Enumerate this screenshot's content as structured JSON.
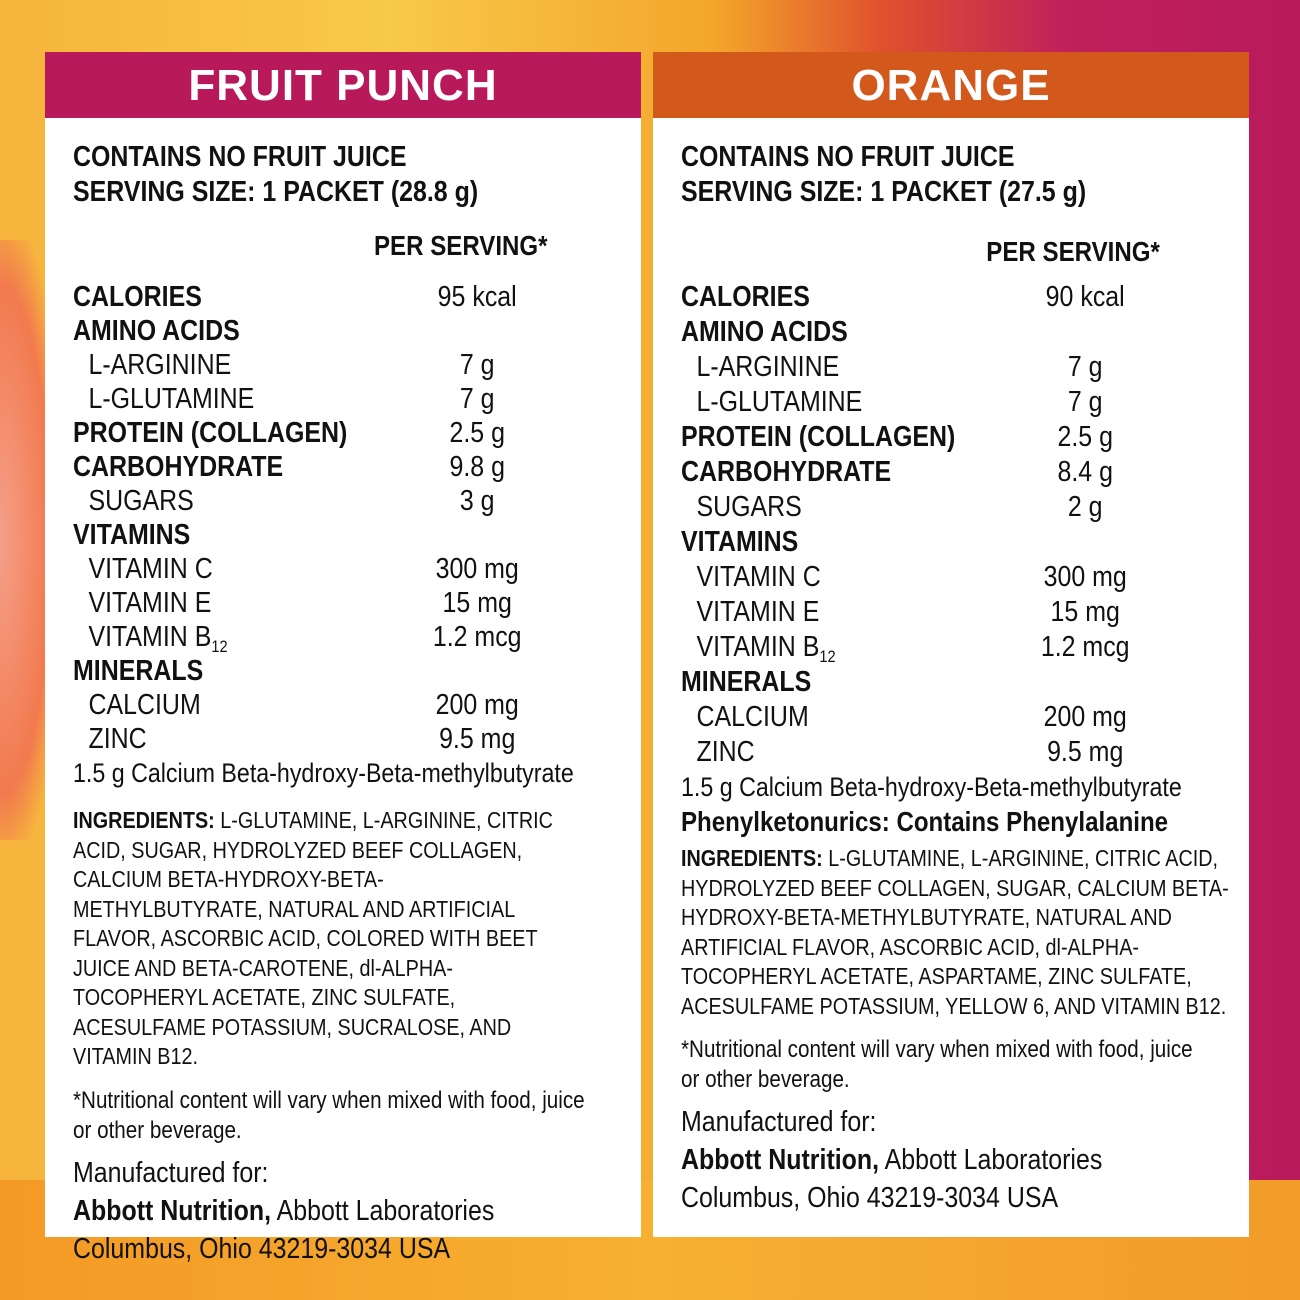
{
  "panels": [
    {
      "title": "FRUIT PUNCH",
      "color": "#b7195a",
      "line1": "CONTAINS NO FRUIT JUICE",
      "line2": "SERVING SIZE: 1 PACKET (28.8 g)",
      "per": "PER SERVING*",
      "rows": [
        {
          "label": "CALORIES",
          "value": "95 kcal",
          "type": "h"
        },
        {
          "label": "AMINO ACIDS",
          "value": "",
          "type": "h"
        },
        {
          "label": "L-ARGININE",
          "value": "7 g",
          "type": "s"
        },
        {
          "label": "L-GLUTAMINE",
          "value": "7 g",
          "type": "s"
        },
        {
          "label": "PROTEIN (COLLAGEN)",
          "value": "2.5 g",
          "type": "h"
        },
        {
          "label": "CARBOHYDRATE",
          "value": "9.8 g",
          "type": "h"
        },
        {
          "label": "SUGARS",
          "value": "3 g",
          "type": "s"
        },
        {
          "label": "VITAMINS",
          "value": "",
          "type": "h"
        },
        {
          "label": "VITAMIN C",
          "value": "300 mg",
          "type": "s"
        },
        {
          "label": "VITAMIN E",
          "value": "15 mg",
          "type": "s"
        },
        {
          "label": "VITAMIN B",
          "sub": "12",
          "value": "1.2 mcg",
          "type": "s"
        },
        {
          "label": "MINERALS",
          "value": "",
          "type": "h"
        },
        {
          "label": "CALCIUM",
          "value": "200 mg",
          "type": "s"
        },
        {
          "label": "ZINC",
          "value": "9.5 mg",
          "type": "s"
        }
      ],
      "hmb": "1.5 g Calcium Beta-hydroxy-Beta-methylbutyrate",
      "pku": "",
      "ing_label": "INGREDIENTS:",
      "ingredients": " L-GLUTAMINE, L-ARGININE, CITRIC ACID, SUGAR, HYDROLYZED BEEF COLLAGEN, CALCIUM BETA-HYDROXY-BETA-METHYLBUTYRATE, NATURAL AND ARTIFICIAL FLAVOR, ASCORBIC ACID, COLORED WITH BEET JUICE AND BETA-CAROTENE, dl-ALPHA-TOCOPHERYL ACETATE, ZINC SULFATE, ACESULFAME POTASSIUM, SUCRALOSE, AND VITAMIN B12.",
      "note": "*Nutritional content will vary when mixed with food, juice or other beverage.",
      "mfg": "Manufactured for:",
      "company": "Abbott Nutrition,",
      "company_rest": " Abbott Laboratories",
      "address": "Columbus, Ohio 43219-3034 USA"
    },
    {
      "title": "ORANGE",
      "color": "#d3581c",
      "line1": "CONTAINS NO FRUIT JUICE",
      "line2": "SERVING SIZE: 1 PACKET (27.5 g)",
      "per": "PER SERVING*",
      "rows": [
        {
          "label": "CALORIES",
          "value": "90 kcal",
          "type": "h"
        },
        {
          "label": "AMINO ACIDS",
          "value": "",
          "type": "h"
        },
        {
          "label": "L-ARGININE",
          "value": "7 g",
          "type": "s"
        },
        {
          "label": "L-GLUTAMINE",
          "value": "7 g",
          "type": "s"
        },
        {
          "label": "PROTEIN (COLLAGEN)",
          "value": "2.5 g",
          "type": "h"
        },
        {
          "label": "CARBOHYDRATE",
          "value": "8.4 g",
          "type": "h"
        },
        {
          "label": "SUGARS",
          "value": "2 g",
          "type": "s"
        },
        {
          "label": "VITAMINS",
          "value": "",
          "type": "h"
        },
        {
          "label": "VITAMIN C",
          "value": "300 mg",
          "type": "s"
        },
        {
          "label": "VITAMIN E",
          "value": "15 mg",
          "type": "s"
        },
        {
          "label": "VITAMIN B",
          "sub": "12",
          "value": "1.2 mcg",
          "type": "s"
        },
        {
          "label": "MINERALS",
          "value": "",
          "type": "h"
        },
        {
          "label": "CALCIUM",
          "value": "200 mg",
          "type": "s"
        },
        {
          "label": "ZINC",
          "value": "9.5 mg",
          "type": "s"
        }
      ],
      "hmb": "1.5 g Calcium Beta-hydroxy-Beta-methylbutyrate",
      "pku": "Phenylketonurics: Contains Phenylalanine",
      "ing_label": "INGREDIENTS:",
      "ingredients": " L-GLUTAMINE, L-ARGININE, CITRIC ACID, HYDROLYZED BEEF COLLAGEN, SUGAR, CALCIUM BETA-HYDROXY-BETA-METHYLBUTYRATE, NATURAL AND ARTIFICIAL FLAVOR, ASCORBIC ACID, dl-ALPHA-TOCOPHERYL ACETATE, ASPARTAME, ZINC SULFATE, ACESULFAME POTASSIUM, YELLOW 6, AND VITAMIN B12.",
      "note": "*Nutritional content will vary when mixed with food, juice or other beverage.",
      "mfg": "Manufactured for:",
      "company": "Abbott Nutrition,",
      "company_rest": " Abbott Laboratories",
      "address": "Columbus, Ohio 43219-3034 USA"
    }
  ]
}
